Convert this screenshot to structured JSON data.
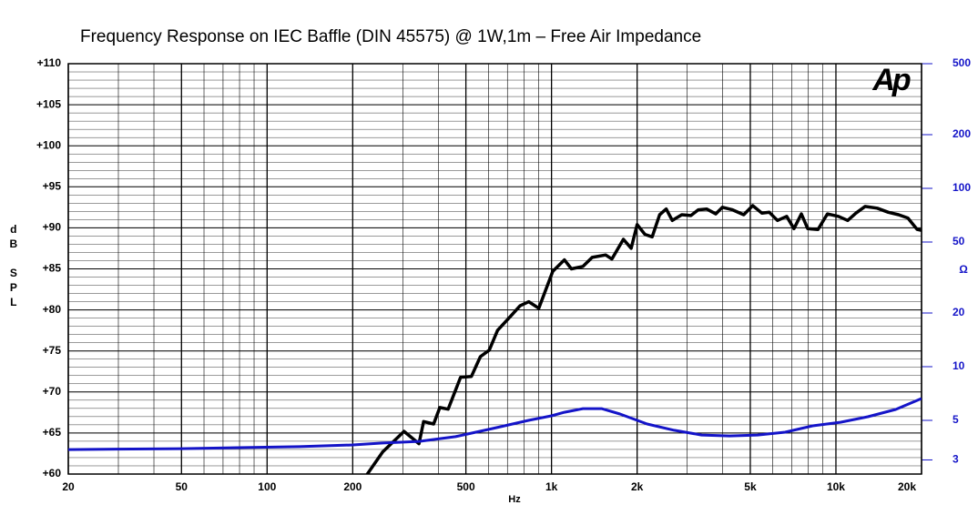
{
  "chart_data": {
    "type": "line",
    "title": "Frequency Response on IEC Baffle (DIN 45575) @ 1W,1m – Free Air Impedance",
    "xlabel": "Hz",
    "ylabel": "dB SPL",
    "y2label": "Ω",
    "logo": "Ap",
    "xlog": true,
    "y2log": true,
    "grid": true,
    "xlim": [
      20,
      20000
    ],
    "ylim": [
      60,
      110
    ],
    "y2lim": [
      2.5,
      500
    ],
    "xticks": [
      20,
      50,
      100,
      200,
      500,
      {
        "value": 1000,
        "label": "1k"
      },
      {
        "value": 2000,
        "label": "2k"
      },
      {
        "value": 5000,
        "label": "5k"
      },
      {
        "value": 10000,
        "label": "10k"
      },
      {
        "value": 20000,
        "label": "20k"
      }
    ],
    "yticks": [
      {
        "value": 60,
        "label": "+60"
      },
      {
        "value": 65,
        "label": "+65"
      },
      {
        "value": 70,
        "label": "+70"
      },
      {
        "value": 75,
        "label": "+75"
      },
      {
        "value": 80,
        "label": "+80"
      },
      {
        "value": 85,
        "label": "+85"
      },
      {
        "value": 90,
        "label": "+90"
      },
      {
        "value": 95,
        "label": "+95"
      },
      {
        "value": 100,
        "label": "+100"
      },
      {
        "value": 105,
        "label": "+105"
      },
      {
        "value": 110,
        "label": "+110"
      }
    ],
    "y2ticks": [
      3,
      5,
      10,
      20,
      50,
      100,
      200,
      500
    ],
    "series": [
      {
        "name": "SPL",
        "color": "#000000",
        "x": [
          220,
          255,
          303,
          342,
          355,
          385,
          405,
          433,
          479,
          523,
          562,
          604,
          646,
          721,
          775,
          832,
          902,
          1010,
          1110,
          1175,
          1290,
          1390,
          1550,
          1630,
          1790,
          1905,
          2000,
          2130,
          2260,
          2400,
          2530,
          2660,
          2870,
          3090,
          3280,
          3510,
          3780,
          3990,
          4330,
          4740,
          5100,
          5490,
          5830,
          6230,
          6710,
          7120,
          7560,
          7960,
          8650,
          9330,
          10200,
          11000,
          11760,
          12660,
          13970,
          15280,
          16610,
          17900,
          19300,
          20000
        ],
        "values": [
          59.5,
          62.7,
          65.2,
          63.7,
          66.4,
          66.1,
          68.1,
          67.9,
          71.8,
          71.9,
          74.3,
          75.1,
          77.5,
          79.3,
          80.5,
          81,
          80.2,
          84.7,
          86.1,
          85,
          85.3,
          86.4,
          86.7,
          86.2,
          88.6,
          87.5,
          90.4,
          89.2,
          88.9,
          91.6,
          92.3,
          90.9,
          91.6,
          91.5,
          92.2,
          92.3,
          91.7,
          92.5,
          92.2,
          91.6,
          92.7,
          91.8,
          91.9,
          90.9,
          91.4,
          89.9,
          91.7,
          89.9,
          89.8,
          91.7,
          91.4,
          90.9,
          91.8,
          92.6,
          92.4,
          91.9,
          91.6,
          91.2,
          89.8,
          89.7
        ]
      },
      {
        "name": "Impedance",
        "color": "#1414c8",
        "axis": "y2",
        "x": [
          20,
          50,
          130,
          200,
          255,
          342,
          460,
          620,
          830,
          1000,
          1110,
          1290,
          1500,
          1740,
          2170,
          2700,
          3370,
          4230,
          5300,
          6630,
          8280,
          10360,
          12960,
          16220,
          20000
        ],
        "values": [
          3.43,
          3.47,
          3.56,
          3.64,
          3.73,
          3.81,
          4.05,
          4.5,
          5.0,
          5.3,
          5.55,
          5.82,
          5.82,
          5.43,
          4.77,
          4.4,
          4.14,
          4.09,
          4.14,
          4.29,
          4.66,
          4.88,
          5.24,
          5.76,
          6.63
        ]
      }
    ]
  }
}
